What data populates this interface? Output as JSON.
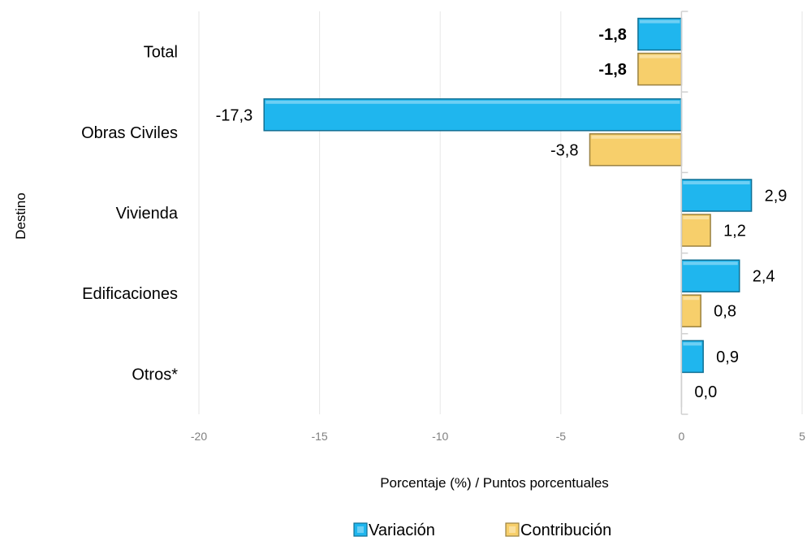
{
  "chart_data": {
    "type": "bar",
    "orientation": "horizontal",
    "categories": [
      "Total",
      "Obras Civiles",
      "Vivienda",
      "Edificaciones",
      "Otros*"
    ],
    "series": [
      {
        "name": "Variación",
        "color": "#1fb6ee",
        "values": [
          -1.8,
          -17.3,
          2.9,
          2.4,
          0.9
        ],
        "labels": [
          "-1,8",
          "-17,3",
          "2,9",
          "2,4",
          "0,9"
        ]
      },
      {
        "name": "Contribución",
        "color": "#f7cf6b",
        "values": [
          -1.8,
          -3.8,
          1.2,
          0.8,
          0.0
        ],
        "labels": [
          "-1,8",
          "-3,8",
          "1,2",
          "0,8",
          "0,0"
        ]
      }
    ],
    "bold_label_categories": [
      "Total"
    ],
    "xlim": [
      -20,
      5
    ],
    "xticks": [
      -20,
      -15,
      -10,
      -5,
      0,
      5
    ],
    "xtick_labels": [
      "-20",
      "-15",
      "-10",
      "-5",
      "0",
      "5"
    ],
    "xlabel": "Porcentaje (%) / Puntos porcentuales",
    "ylabel": "Destino",
    "grid": "vertical",
    "legend_position": "bottom"
  }
}
